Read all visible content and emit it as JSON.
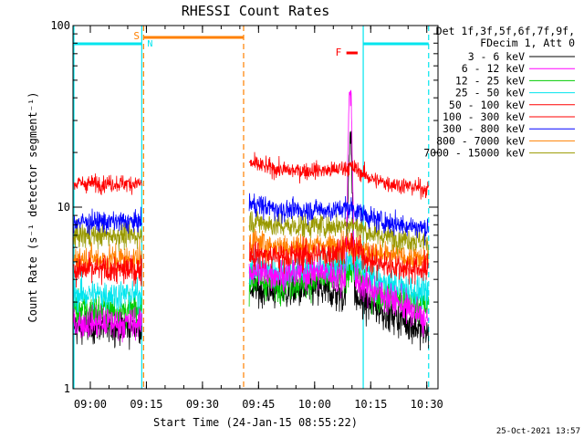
{
  "chart_data": {
    "type": "line",
    "title": "RHESSI Count Rates",
    "xlabel": "Start Time (24-Jan-15 08:55:22)",
    "ylabel": "Count Rate (s⁻¹ detector segment⁻¹)",
    "y_scale": "log",
    "ylim": [
      1,
      100
    ],
    "xlim": [
      "08:55:22",
      "10:33:00"
    ],
    "x_ticks": [
      "09:00",
      "09:15",
      "09:30",
      "09:45",
      "10:00",
      "10:15",
      "10:30"
    ],
    "y_ticks": [
      "1",
      "10",
      "100"
    ],
    "legend_header": [
      "Det 1f,3f,5f,6f,7f,9f,",
      "FDecim 1, Att 0"
    ],
    "legend_position": "right",
    "timestamp": "25-Oct-2021 13:57",
    "annotations": [
      {
        "label": "S",
        "color": "#ff8000"
      },
      {
        "label": "N",
        "color": "#00e5ee"
      },
      {
        "label": "F",
        "color": "#ff0000"
      }
    ],
    "gap": {
      "from": "09:14:00",
      "to": "09:41:00"
    },
    "flare_peak_time": "10:09:30",
    "series": [
      {
        "name": "3 - 6 keV",
        "color": "#000000",
        "values_before_gap": 2.2,
        "values_after_gap_start": 3.6,
        "values_mid": 3.2,
        "values_peak": 25,
        "values_end": 2.0
      },
      {
        "name": "6 - 12 keV",
        "color": "#ff00ff",
        "values_before_gap": 2.3,
        "values_after_gap_start": 4.5,
        "values_mid": 4.0,
        "values_peak": 45,
        "values_end": 2.3
      },
      {
        "name": "12 - 25 keV",
        "color": "#00cc00",
        "values_before_gap": 2.7,
        "values_after_gap_start": 4.0,
        "values_mid": 3.6,
        "values_peak": 4.5,
        "values_end": 2.8
      },
      {
        "name": "25 - 50 keV",
        "color": "#00e5ee",
        "values_before_gap": 3.3,
        "values_after_gap_start": 4.6,
        "values_mid": 4.2,
        "values_peak": 5.0,
        "values_end": 3.3
      },
      {
        "name": "50 - 100 keV",
        "color": "#ff0000",
        "values_before_gap": 4.5,
        "values_after_gap_start": 5.6,
        "values_mid": 5.0,
        "values_peak": 6.0,
        "values_end": 4.5
      },
      {
        "name": "100 - 300 keV",
        "color": "#ff0000",
        "values_before_gap": 13.5,
        "values_after_gap_start": 17.5,
        "values_mid": 14.5,
        "values_peak": 16.5,
        "values_end": 12.5
      },
      {
        "name": "300 - 800 keV",
        "color": "#0000ff",
        "values_before_gap": 8.3,
        "values_after_gap_start": 10.5,
        "values_mid": 8.8,
        "values_peak": 9.8,
        "values_end": 7.6
      },
      {
        "name": "800 - 7000 keV",
        "color": "#ff8000",
        "values_before_gap": 5.2,
        "values_after_gap_start": 6.5,
        "values_mid": 5.6,
        "values_peak": 6.2,
        "values_end": 5.1
      },
      {
        "name": "7000 - 15000 keV",
        "color": "#999900",
        "values_before_gap": 7.0,
        "values_after_gap_start": 8.5,
        "values_mid": 7.2,
        "values_peak": 8.0,
        "values_end": 6.5
      }
    ]
  }
}
